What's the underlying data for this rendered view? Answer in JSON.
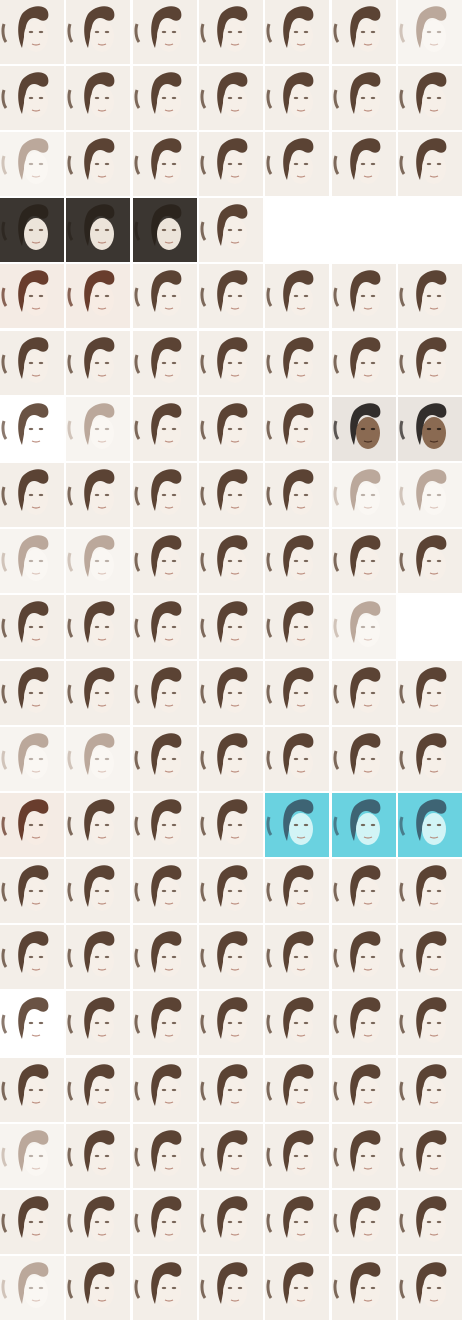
{
  "grid": {
    "rows": 20,
    "cols": 7,
    "row_styles": [
      [
        "plain",
        "plain",
        "plain",
        "plain",
        "plain",
        "plain",
        "faded"
      ],
      [
        "plain",
        "plain",
        "plain",
        "plain",
        "plain",
        "plain",
        "plain"
      ],
      [
        "faded",
        "plain",
        "plain",
        "plain",
        "plain",
        "plain",
        "plain"
      ],
      [
        "dark",
        "dark",
        "dark",
        "plain",
        "blank",
        "blank",
        "blank"
      ],
      [
        "warm",
        "warm",
        "plain",
        "plain",
        "plain",
        "plain",
        "plain"
      ],
      [
        "plain",
        "plain",
        "plain",
        "plain",
        "plain",
        "plain",
        "plain"
      ],
      [
        "blank",
        "faded",
        "plain",
        "plain",
        "plain",
        "darkface",
        "darkface"
      ],
      [
        "plain",
        "plain",
        "plain",
        "plain",
        "plain",
        "faded",
        "faded"
      ],
      [
        "faded",
        "faded",
        "plain",
        "plain",
        "plain",
        "plain",
        "plain"
      ],
      [
        "plain",
        "plain",
        "plain",
        "plain",
        "plain",
        "faded",
        "blank"
      ],
      [
        "plain",
        "plain",
        "plain",
        "plain",
        "plain",
        "plain",
        "plain"
      ],
      [
        "faded",
        "faded",
        "plain",
        "plain",
        "plain",
        "plain",
        "plain"
      ],
      [
        "warm",
        "plain",
        "plain",
        "plain",
        "cyan",
        "cyan",
        "cyan"
      ],
      [
        "plain",
        "plain",
        "plain",
        "plain",
        "plain",
        "plain",
        "plain"
      ],
      [
        "plain",
        "plain",
        "plain",
        "plain",
        "plain",
        "plain",
        "plain"
      ],
      [
        "blank",
        "plain",
        "plain",
        "plain",
        "plain",
        "plain",
        "plain"
      ],
      [
        "plain",
        "plain",
        "plain",
        "plain",
        "plain",
        "plain",
        "plain"
      ],
      [
        "faded",
        "plain",
        "plain",
        "plain",
        "plain",
        "plain",
        "plain"
      ],
      [
        "plain",
        "plain",
        "plain",
        "plain",
        "plain",
        "plain",
        "plain"
      ],
      [
        "faded",
        "plain",
        "plain",
        "plain",
        "plain",
        "plain",
        "plain"
      ]
    ]
  },
  "palette": {
    "plain": {
      "bg": "#f3eee8",
      "hair": "#4a3020",
      "skin": "#f6efe8"
    },
    "faded": {
      "bg": "#f7f4f0",
      "hair": "#8a6a55",
      "skin": "#faf7f3"
    },
    "dark": {
      "bg": "#3b3631",
      "hair": "#2a221c",
      "skin": "#ece4da"
    },
    "blank": {
      "bg": "#ffffff",
      "hair": "#5a4030",
      "skin": "#ffffff"
    },
    "warm": {
      "bg": "#f4ebe4",
      "hair": "#5a2a18",
      "skin": "#f7ece4"
    },
    "darkface": {
      "bg": "#e9e4df",
      "hair": "#1e1a18",
      "skin": "#8a6a52"
    },
    "cyan": {
      "bg": "#6ad2e0",
      "hair": "#3a5868",
      "skin": "#d2f4f6"
    }
  }
}
